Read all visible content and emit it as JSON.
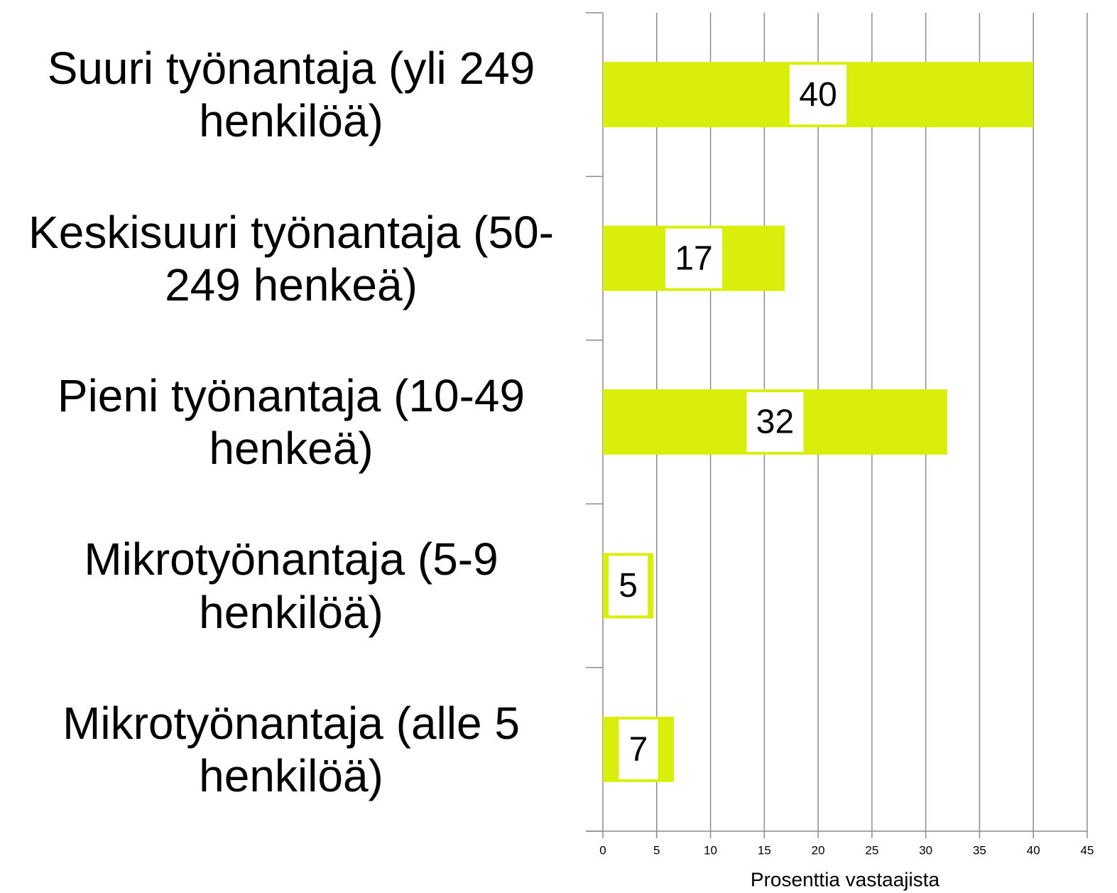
{
  "chart_data": {
    "type": "barh",
    "categories": [
      "Suuri työnantaja (yli 249 henkilöä)",
      "Keskisuuri työnantaja (50-249 henkeä)",
      "Pieni työnantaja (10-49 henkeä)",
      "Mikrotyönantaja (5-9 henkilöä)",
      "Mikrotyönantaja (alle 5 henkilöä)"
    ],
    "values": [
      40,
      16.9,
      32,
      4.7,
      6.6
    ],
    "value_labels": [
      "40",
      "17",
      "32",
      "5",
      "7"
    ],
    "color": "#d9ee0a",
    "xlabel": "Prosenttia vastaajista",
    "xlim": [
      0,
      45
    ],
    "xticks": [
      0,
      5,
      10,
      15,
      20,
      25,
      30,
      35,
      40,
      45
    ],
    "grid": true
  }
}
